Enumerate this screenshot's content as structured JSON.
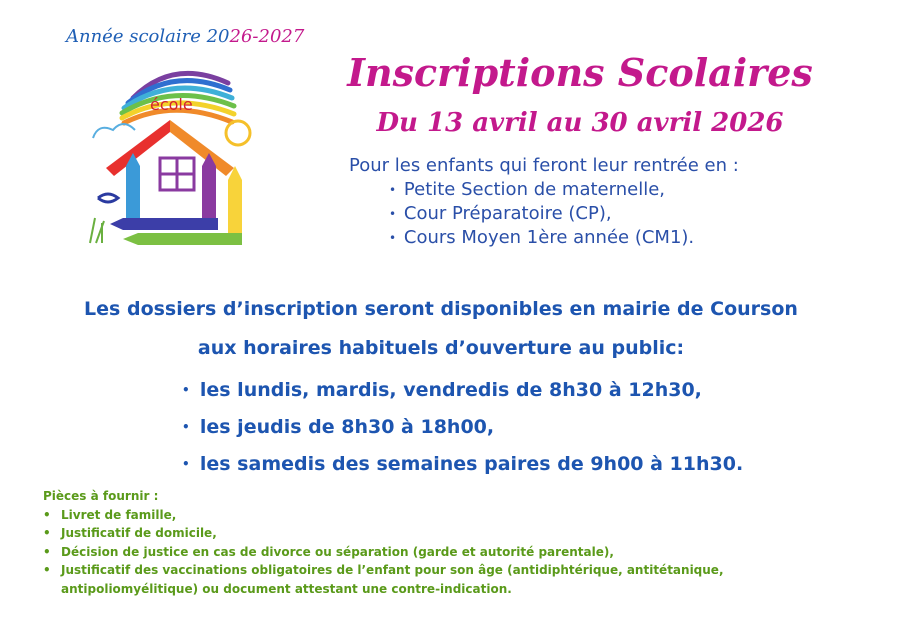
{
  "header": {
    "year_prefix": "Année scolaire 20",
    "year_highlight": "26-2027"
  },
  "logo": {
    "text": "école"
  },
  "title": "Inscriptions Scolaires",
  "dates": "Du 13 avril au 30 avril 2026",
  "intro": {
    "lead": "Pour les enfants qui feront leur rentrée en :",
    "items": [
      "Petite Section de maternelle,",
      "Cour Préparatoire (CP),",
      "Cours Moyen 1ère année (CM1)."
    ]
  },
  "dossiers": {
    "line1": "Les dossiers d’inscription seront disponibles en mairie de Courson",
    "line2": "aux horaires habituels d’ouverture au public:",
    "hours": [
      "les lundis, mardis, vendredis de 8h30 à 12h30,",
      "les jeudis de 8h30 à 18h00,",
      "les samedis des semaines paires de 9h00 à 11h30."
    ]
  },
  "pieces": {
    "title": "Pièces à fournir :",
    "items": [
      "Livret de famille,",
      "Justificatif de domicile,",
      "Décision de justice en cas de divorce ou séparation (garde et autorité parentale),",
      "Justificatif des vaccinations obligatoires de l’enfant pour son âge (antidiphtérique, antitétanique, antipoliomyélitique) ou document attestant une contre-indication."
    ]
  },
  "colors": {
    "magenta": "#c3198c",
    "blue": "#1d55b0",
    "green": "#5a9a1a"
  }
}
